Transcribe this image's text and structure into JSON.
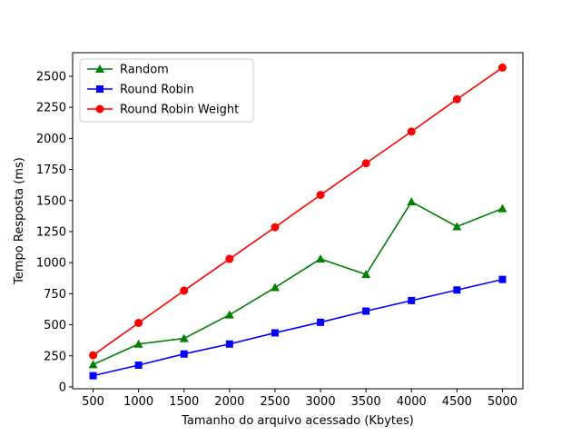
{
  "chart_data": {
    "type": "line",
    "title": "",
    "xlabel": "Tamanho do arquivo acessado (Kbytes)",
    "ylabel": "Tempo Resposta (ms)",
    "x": [
      500,
      1000,
      1500,
      2000,
      2500,
      3000,
      3500,
      4000,
      4500,
      5000
    ],
    "xticks": [
      500,
      1000,
      1500,
      2000,
      2500,
      3000,
      3500,
      4000,
      4500,
      5000
    ],
    "yticks": [
      0,
      250,
      500,
      750,
      1000,
      1250,
      1500,
      1750,
      2000,
      2250,
      2500
    ],
    "xlim": [
      275,
      5225
    ],
    "ylim": [
      -15,
      2690
    ],
    "grid": false,
    "legend_position": "upper-left",
    "series": [
      {
        "name": "Random",
        "color": "#008000",
        "marker": "triangle",
        "values": [
          180,
          345,
          390,
          580,
          800,
          1030,
          905,
          1490,
          1290,
          1435
        ]
      },
      {
        "name": "Round Robin",
        "color": "#0000ff",
        "marker": "square",
        "values": [
          90,
          175,
          265,
          345,
          435,
          520,
          610,
          695,
          780,
          865
        ]
      },
      {
        "name": "Round Robin Weight",
        "color": "#ff0000",
        "marker": "circle",
        "values": [
          255,
          515,
          775,
          1030,
          1285,
          1545,
          1800,
          2055,
          2315,
          2570
        ]
      }
    ]
  }
}
